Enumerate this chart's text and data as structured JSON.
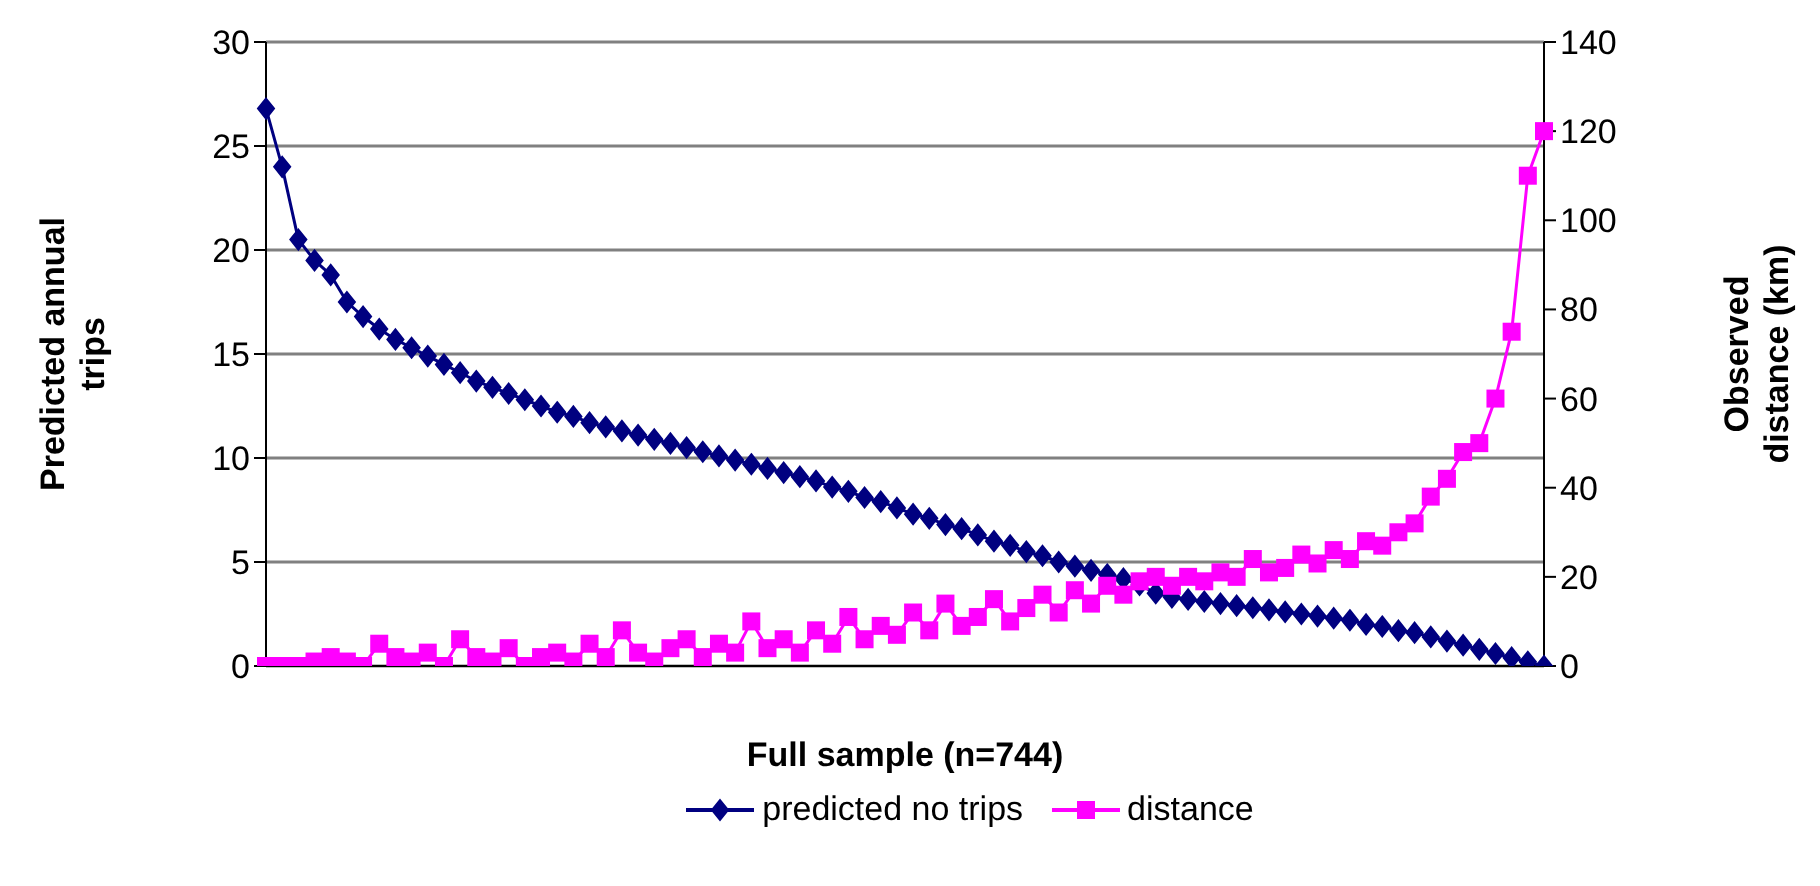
{
  "chart_data": {
    "type": "line",
    "xlabel": "Full sample (n=744)",
    "ylabel": "Predicted annual trips",
    "y2label": "Observed distance (km)",
    "categories": [
      null,
      null,
      null,
      null,
      null,
      null,
      null,
      null,
      null,
      null,
      null,
      null,
      null,
      null,
      null,
      null,
      null,
      null,
      null,
      null,
      null,
      null,
      null,
      null,
      null,
      null,
      null,
      null,
      null,
      null,
      null,
      null,
      null,
      null,
      null,
      null,
      null,
      null,
      null,
      null,
      null,
      null,
      null,
      null,
      null,
      null,
      null,
      null,
      null,
      null,
      null,
      null,
      null,
      null,
      null,
      null,
      null,
      null,
      null,
      null,
      null,
      null,
      null,
      null,
      null,
      null,
      null,
      null,
      null,
      null,
      null,
      null,
      null,
      null,
      null,
      null,
      null,
      null,
      null,
      null
    ],
    "series": [
      {
        "name": "predicted no trips",
        "color": "#000080",
        "marker": "diamond",
        "values": [
          26.8,
          24,
          20.5,
          19.5,
          18.8,
          17.5,
          16.8,
          16.2,
          15.7,
          15.3,
          14.9,
          14.5,
          14.1,
          13.7,
          13.4,
          13.1,
          12.8,
          12.5,
          12.2,
          12.0,
          11.7,
          11.5,
          11.3,
          11.1,
          10.9,
          10.7,
          10.5,
          10.3,
          10.1,
          9.9,
          9.7,
          9.5,
          9.3,
          9.1,
          8.9,
          8.6,
          8.4,
          8.1,
          7.9,
          7.6,
          7.3,
          7.1,
          6.8,
          6.6,
          6.3,
          6.0,
          5.8,
          5.5,
          5.3,
          5.0,
          4.8,
          4.6,
          4.4,
          4.2,
          3.9,
          3.5,
          3.3,
          3.2,
          3.1,
          3.0,
          2.9,
          2.8,
          2.7,
          2.6,
          2.5,
          2.4,
          2.3,
          2.2,
          2.0,
          1.9,
          1.7,
          1.6,
          1.4,
          1.2,
          1.0,
          0.8,
          0.6,
          0.4,
          0.2,
          0.0
        ]
      },
      {
        "name": "distance",
        "color": "#ff00ff",
        "marker": "square",
        "axis": "y2",
        "values": [
          0,
          0,
          0,
          1,
          2,
          1,
          0,
          5,
          2,
          1,
          3,
          0,
          6,
          2,
          1,
          4,
          0,
          2,
          3,
          1,
          5,
          2,
          8,
          3,
          1,
          4,
          6,
          2,
          5,
          3,
          10,
          4,
          6,
          3,
          8,
          5,
          11,
          6,
          9,
          7,
          12,
          8,
          14,
          9,
          11,
          15,
          10,
          13,
          16,
          12,
          17,
          14,
          18,
          16,
          19,
          20,
          18,
          20,
          19,
          21,
          20,
          24,
          21,
          22,
          25,
          23,
          26,
          24,
          28,
          27,
          30,
          32,
          38,
          42,
          48,
          50,
          60,
          75,
          110,
          120
        ]
      }
    ],
    "ylim": [
      0,
      30
    ],
    "yticks": [
      0,
      5,
      10,
      15,
      20,
      25,
      30
    ],
    "y2lim": [
      0,
      140
    ],
    "y2ticks": [
      0,
      20,
      40,
      60,
      80,
      100,
      120,
      140
    ],
    "grid": "y",
    "legend": "bottom",
    "tick_labels": "y"
  }
}
